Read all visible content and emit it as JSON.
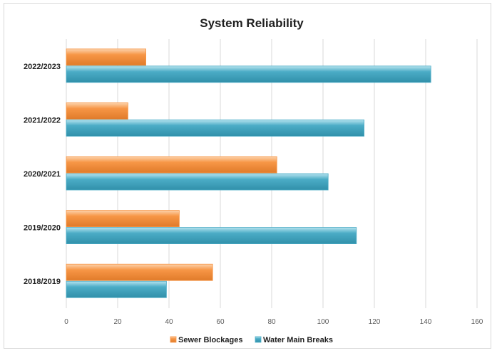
{
  "chart_data": {
    "type": "bar",
    "orientation": "horizontal",
    "title": "System Reliability",
    "xlabel": "",
    "ylabel": "",
    "categories": [
      "2018/2019",
      "2019/2020",
      "2020/2021",
      "2021/2022",
      "2022/2023"
    ],
    "series": [
      {
        "name": "Sewer Blockages",
        "values": [
          57,
          44,
          82,
          24,
          31
        ]
      },
      {
        "name": "Water Main Breaks",
        "values": [
          39,
          113,
          102,
          116,
          142
        ]
      }
    ],
    "xlim": [
      0,
      160
    ],
    "x_ticks": [
      "0",
      "20",
      "40",
      "60",
      "80",
      "100",
      "120",
      "140",
      "160"
    ],
    "grid": true,
    "legend_position": "bottom"
  },
  "colors": {
    "sewer_blockages": "#f79646",
    "water_main_breaks": "#4bacc6"
  }
}
